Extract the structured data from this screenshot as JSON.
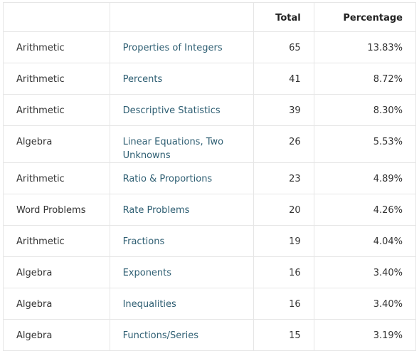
{
  "table": {
    "header": [
      "Total",
      "Percentage"
    ],
    "rows": [
      [
        "Arithmetic",
        "Properties of Integers",
        65,
        "13.83%"
      ],
      [
        "Arithmetic",
        "Percents",
        41,
        "8.72%"
      ],
      [
        "Arithmetic",
        "Descriptive Statistics",
        39,
        "8.30%"
      ],
      [
        "Algebra",
        "Linear Equations, Two Unknowns",
        26,
        "5.53%"
      ],
      [
        "Arithmetic",
        "Ratio & Proportions",
        23,
        "4.89%"
      ],
      [
        "Word Problems",
        "Rate Problems",
        20,
        "4.26%"
      ],
      [
        "Arithmetic",
        "Fractions",
        19,
        "4.04%"
      ],
      [
        "Algebra",
        "Exponents",
        16,
        "3.40%"
      ],
      [
        "Algebra",
        "Inequalities",
        16,
        "3.40%"
      ],
      [
        "Algebra",
        "Functions/Series",
        15,
        "3.19%"
      ]
    ]
  }
}
